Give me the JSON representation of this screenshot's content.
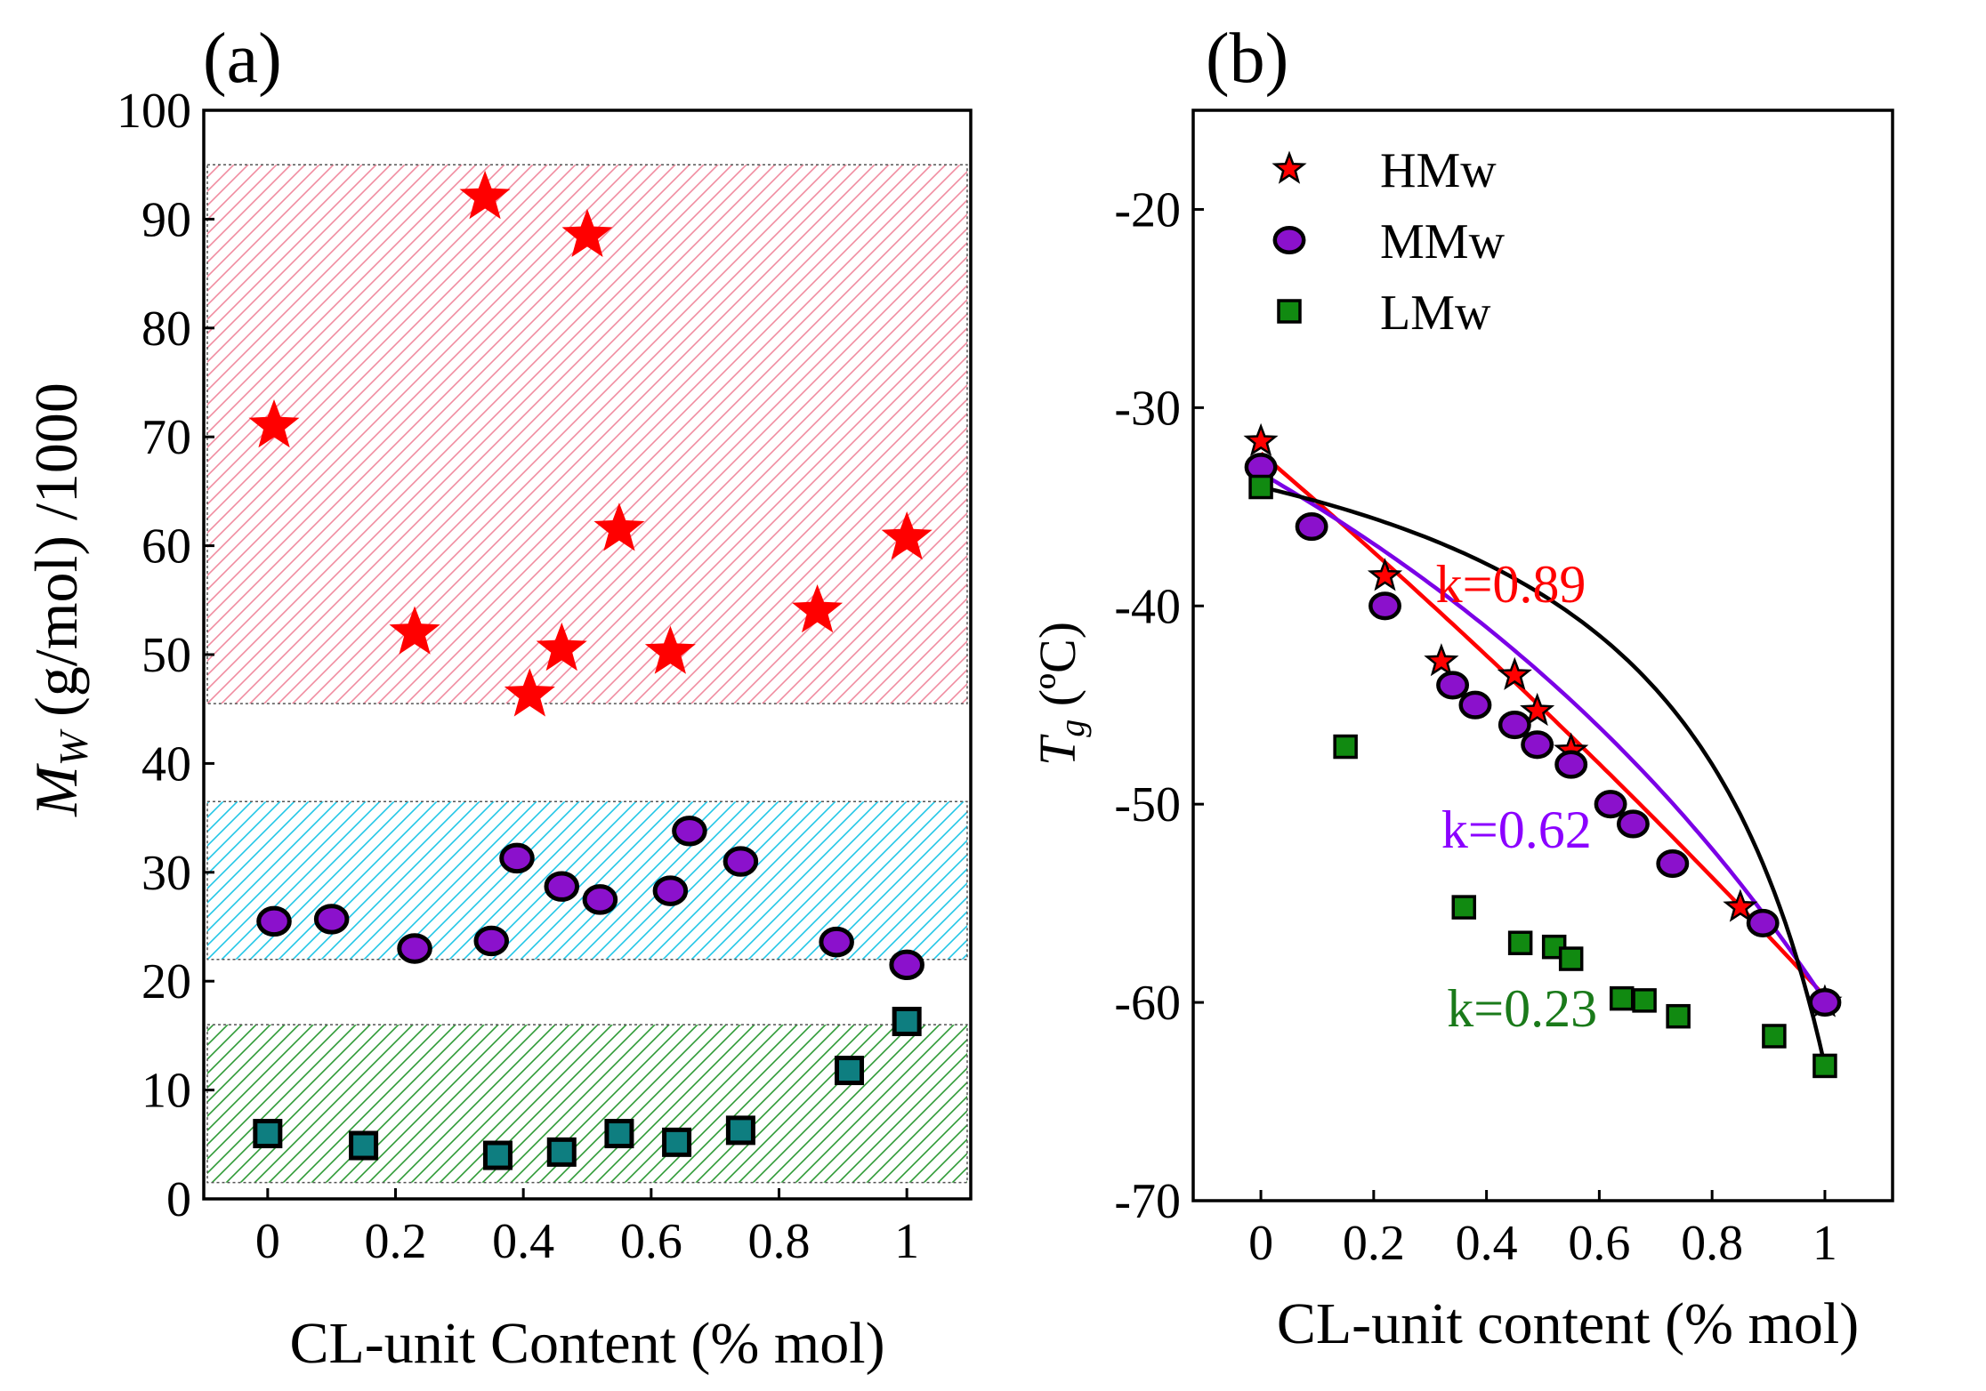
{
  "chart_data": [
    {
      "panel_label": "(a)",
      "type": "scatter",
      "xlabel": "CL-unit Content (% mol)",
      "ylabel_main": "M",
      "ylabel_sub": "W",
      "ylabel_rest": " (g/mol) /1000",
      "xlim": [
        -0.1,
        1.1
      ],
      "ylim": [
        0,
        100
      ],
      "xticks": [
        0,
        0.2,
        0.4,
        0.6,
        0.8,
        1
      ],
      "xtick_labels": [
        "0",
        "0.2",
        "0.4",
        "0.6",
        "0.8",
        "1"
      ],
      "yticks": [
        0,
        10,
        20,
        30,
        40,
        50,
        60,
        70,
        80,
        90,
        100
      ],
      "ytick_labels": [
        "0",
        "10",
        "20",
        "30",
        "40",
        "50",
        "60",
        "70",
        "80",
        "90",
        "100"
      ],
      "bands": [
        {
          "name": "HMw band",
          "y": [
            45.5,
            95
          ],
          "color": "#f08ca0"
        },
        {
          "name": "MMw band",
          "y": [
            22,
            36.5
          ],
          "color": "#22c6e6"
        },
        {
          "name": "LMw band",
          "y": [
            1.5,
            16
          ],
          "color": "#2e9a36"
        }
      ],
      "series": [
        {
          "name": "HMw",
          "marker": "star",
          "color": "#ff0000",
          "x": [
            0.01,
            0.23,
            0.34,
            0.41,
            0.46,
            0.5,
            0.55,
            0.63,
            0.86,
            1.0
          ],
          "y": [
            71,
            52,
            92,
            46.3,
            50.5,
            88.5,
            61.5,
            50.2,
            54,
            60.7
          ]
        },
        {
          "name": "MMw",
          "marker": "circle",
          "color": "#8b11cc",
          "x": [
            0.01,
            0.1,
            0.23,
            0.35,
            0.39,
            0.46,
            0.52,
            0.63,
            0.66,
            0.74,
            0.89,
            1.0
          ],
          "y": [
            25.5,
            25.7,
            23,
            23.7,
            31.3,
            28.7,
            27.5,
            28.3,
            33.8,
            31,
            23.6,
            21.5
          ]
        },
        {
          "name": "LMw",
          "marker": "square",
          "color": "#0e7e80",
          "x": [
            0.0,
            0.15,
            0.36,
            0.46,
            0.55,
            0.64,
            0.74,
            0.91,
            1.0
          ],
          "y": [
            6,
            4.9,
            4,
            4.3,
            6,
            5.2,
            6.3,
            11.8,
            16.3
          ]
        }
      ]
    },
    {
      "panel_label": "(b)",
      "type": "scatter",
      "xlabel": "CL-unit content  (% mol)",
      "ylabel_main": "T",
      "ylabel_sub": "g",
      "ylabel_rest": " (ºC)",
      "xlim": [
        -0.12,
        1.12
      ],
      "ylim": [
        -70,
        -15
      ],
      "xticks": [
        0,
        0.2,
        0.4,
        0.6,
        0.8,
        1
      ],
      "xtick_labels": [
        "0",
        "0.2",
        "0.4",
        "0.6",
        "0.8",
        "1"
      ],
      "yticks": [
        -70,
        -60,
        -50,
        -40,
        -30,
        -20
      ],
      "ytick_labels": [
        "-70",
        "-60",
        "-50",
        "-40",
        "-30",
        "-20"
      ],
      "legend": {
        "position": "top-left",
        "entries": [
          "HMw",
          "MMw",
          "LMw"
        ]
      },
      "annotations": [
        {
          "text": "k=0.89",
          "x": 0.31,
          "y": -39.8,
          "color": "#ff0000"
        },
        {
          "text": "k=0.62",
          "x": 0.32,
          "y": -52.2,
          "color": "#8b00ff"
        },
        {
          "text": "k=0.23",
          "x": 0.33,
          "y": -61.2,
          "color": "#1a7a1a"
        }
      ],
      "series": [
        {
          "name": "HMw",
          "marker": "star",
          "color": "#ff0000",
          "x": [
            0.0,
            0.22,
            0.32,
            0.45,
            0.49,
            0.55,
            0.85,
            1.0
          ],
          "y": [
            -31.7,
            -38.5,
            -42.8,
            -43.5,
            -45.3,
            -47.3,
            -55.2,
            -60
          ],
          "fit": {
            "k": 0.89,
            "color": "#ff0000",
            "y0": -32.3,
            "y1": -59.7
          }
        },
        {
          "name": "MMw",
          "marker": "circle",
          "color": "#8b11cc",
          "x": [
            0.0,
            0.09,
            0.22,
            0.34,
            0.38,
            0.45,
            0.49,
            0.55,
            0.62,
            0.66,
            0.73,
            0.89,
            1.0
          ],
          "y": [
            -33,
            -36,
            -40,
            -44,
            -45,
            -46,
            -47,
            -48,
            -50,
            -51,
            -53,
            -56,
            -60
          ],
          "fit": {
            "k": 0.62,
            "color": "#7b00e6",
            "y0": -33.3,
            "y1": -59.9
          }
        },
        {
          "name": "LMw",
          "marker": "square",
          "color": "#118a11",
          "x": [
            0.0,
            0.15,
            0.36,
            0.46,
            0.52,
            0.55,
            0.64,
            0.68,
            0.74,
            0.91,
            1.0
          ],
          "y": [
            -34,
            -47.1,
            -55.2,
            -57,
            -57.2,
            -57.8,
            -59.8,
            -59.9,
            -60.7,
            -61.7,
            -63.2
          ],
          "fit": {
            "k": 0.23,
            "color": "#000000",
            "y0": -34.0,
            "y1": -63.2
          }
        }
      ]
    }
  ]
}
